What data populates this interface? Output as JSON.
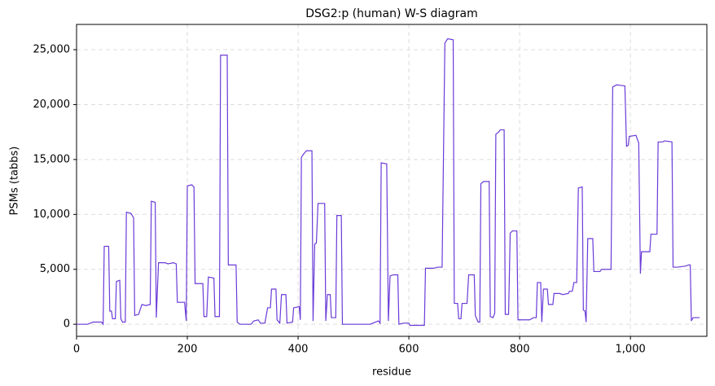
{
  "chart_data": {
    "type": "line",
    "title": "DSG2:p (human) W-S diagram",
    "x_label": "residue",
    "y_label": "PSMs (tabbs)",
    "xlim": [
      0,
      1138
    ],
    "ylim": [
      -1100,
      27300
    ],
    "xticks": [
      0,
      200,
      400,
      600,
      800,
      {
        "value": 1000,
        "label": "1,000"
      }
    ],
    "yticks": [
      0,
      {
        "value": 5000,
        "label": "5,000"
      },
      {
        "value": 10000,
        "label": "10,000"
      },
      {
        "value": 15000,
        "label": "15,000"
      },
      {
        "value": 20000,
        "label": "20,000"
      },
      {
        "value": 25000,
        "label": "25,000"
      }
    ],
    "grid": true,
    "x": [
      0,
      20,
      30,
      45,
      48,
      50,
      58,
      60,
      63,
      65,
      70,
      72,
      78,
      80,
      83,
      88,
      90,
      98,
      103,
      105,
      112,
      118,
      125,
      133,
      135,
      142,
      144,
      148,
      160,
      165,
      175,
      180,
      182,
      195,
      198,
      200,
      208,
      212,
      214,
      228,
      230,
      235,
      238,
      248,
      250,
      258,
      260,
      272,
      274,
      288,
      290,
      295,
      315,
      320,
      328,
      332,
      340,
      345,
      350,
      352,
      360,
      362,
      367,
      370,
      378,
      380,
      390,
      392,
      402,
      404,
      406,
      410,
      415,
      425,
      427,
      430,
      433,
      436,
      448,
      450,
      453,
      458,
      460,
      468,
      470,
      478,
      480,
      530,
      540,
      545,
      548,
      550,
      560,
      563,
      566,
      572,
      580,
      582,
      590,
      600,
      602,
      628,
      630,
      645,
      652,
      660,
      665,
      670,
      680,
      682,
      688,
      690,
      694,
      696,
      705,
      708,
      718,
      720,
      725,
      728,
      730,
      735,
      745,
      747,
      752,
      755,
      757,
      762,
      765,
      772,
      774,
      780,
      783,
      787,
      795,
      797,
      812,
      818,
      825,
      830,
      832,
      838,
      840,
      843,
      850,
      852,
      860,
      862,
      872,
      878,
      888,
      890,
      895,
      898,
      903,
      906,
      913,
      915,
      918,
      920,
      923,
      932,
      934,
      945,
      948,
      965,
      968,
      975,
      990,
      993,
      996,
      998,
      1010,
      1015,
      1018,
      1020,
      1035,
      1037,
      1048,
      1050,
      1058,
      1062,
      1075,
      1077,
      1085,
      1100,
      1105,
      1108,
      1110,
      1113,
      1125
    ],
    "series": [
      {
        "name": "PSMs",
        "color": "#6a3bd8",
        "values": [
          0,
          0,
          200,
          200,
          0,
          7100,
          7100,
          1200,
          1200,
          500,
          500,
          3900,
          4000,
          500,
          200,
          200,
          10200,
          10100,
          9700,
          800,
          900,
          1800,
          1700,
          1800,
          11200,
          11100,
          600,
          5600,
          5600,
          5500,
          5600,
          5500,
          2000,
          2000,
          300,
          12600,
          12700,
          12500,
          3700,
          3700,
          700,
          700,
          4300,
          4200,
          700,
          700,
          24500,
          24500,
          5400,
          5400,
          200,
          0,
          0,
          300,
          400,
          100,
          100,
          1500,
          1500,
          3200,
          3200,
          400,
          100,
          2700,
          2700,
          100,
          200,
          1500,
          1600,
          400,
          15200,
          15500,
          15800,
          15800,
          300,
          7300,
          7400,
          11000,
          11000,
          300,
          2700,
          2700,
          600,
          600,
          9900,
          9900,
          0,
          0,
          200,
          300,
          100,
          14700,
          14600,
          300,
          4400,
          4500,
          4500,
          0,
          100,
          100,
          -100,
          -100,
          5100,
          5100,
          5200,
          5200,
          25600,
          26000,
          25900,
          1900,
          1900,
          500,
          500,
          1900,
          1900,
          4500,
          4500,
          800,
          200,
          200,
          12800,
          13000,
          13000,
          700,
          600,
          1000,
          17300,
          17500,
          17700,
          17700,
          900,
          900,
          8300,
          8500,
          8500,
          400,
          400,
          400,
          600,
          600,
          3800,
          3800,
          200,
          3200,
          3200,
          1800,
          1800,
          2800,
          2800,
          2700,
          2800,
          3000,
          3000,
          3800,
          3800,
          12400,
          12500,
          1300,
          1200,
          200,
          7800,
          7800,
          4800,
          4800,
          5000,
          5000,
          21600,
          21800,
          21700,
          16200,
          16300,
          17100,
          17200,
          16500,
          4600,
          6600,
          6600,
          8200,
          8200,
          16600,
          16600,
          16700,
          16600,
          5200,
          5200,
          5300,
          5400,
          5400,
          300,
          600,
          600
        ]
      }
    ]
  }
}
